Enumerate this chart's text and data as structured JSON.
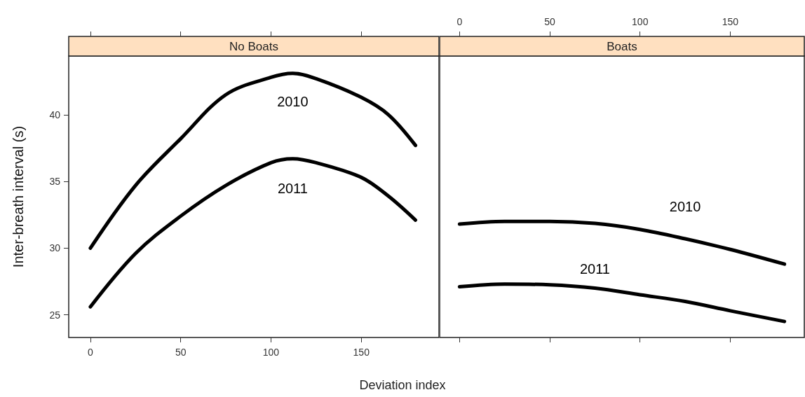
{
  "chart_data": [
    {
      "type": "line",
      "title": "No Boats",
      "xlabel": "Deviation index",
      "ylabel": "Inter-breath interval (s)",
      "x": [
        0,
        25,
        50,
        75,
        100,
        112,
        125,
        150,
        165,
        180
      ],
      "xlim": [
        -12,
        193
      ],
      "xticks": [
        0,
        50,
        100,
        150
      ],
      "ylim": [
        23.3,
        44.4
      ],
      "yticks": [
        25,
        30,
        35,
        40
      ],
      "grid": false,
      "marker": "none",
      "line_style": "solid",
      "series": [
        {
          "name": "2010",
          "color": "#000000",
          "values": [
            30.0,
            34.7,
            38.2,
            41.5,
            42.8,
            43.1,
            42.7,
            41.3,
            40.0,
            37.7
          ]
        },
        {
          "name": "2011",
          "color": "#000000",
          "values": [
            25.6,
            29.6,
            32.4,
            34.7,
            36.4,
            36.7,
            36.4,
            35.3,
            33.9,
            32.1
          ]
        }
      ]
    },
    {
      "type": "line",
      "title": "Boats",
      "x": [
        0,
        25,
        50,
        75,
        100,
        125,
        150,
        180
      ],
      "xlim": [
        -11,
        191
      ],
      "xticks": [
        0,
        50,
        100,
        150
      ],
      "ylim": [
        23.3,
        44.4
      ],
      "yticks": [
        25,
        30,
        35,
        40
      ],
      "tick_labels": "x",
      "grid": false,
      "marker": "none",
      "line_style": "solid",
      "series": [
        {
          "name": "2010",
          "color": "#000000",
          "values": [
            31.8,
            32.0,
            32.0,
            31.85,
            31.4,
            30.7,
            29.9,
            28.8
          ]
        },
        {
          "name": "2011",
          "color": "#000000",
          "values": [
            27.1,
            27.3,
            27.25,
            27.0,
            26.5,
            26.0,
            25.3,
            24.5
          ]
        }
      ]
    }
  ]
}
